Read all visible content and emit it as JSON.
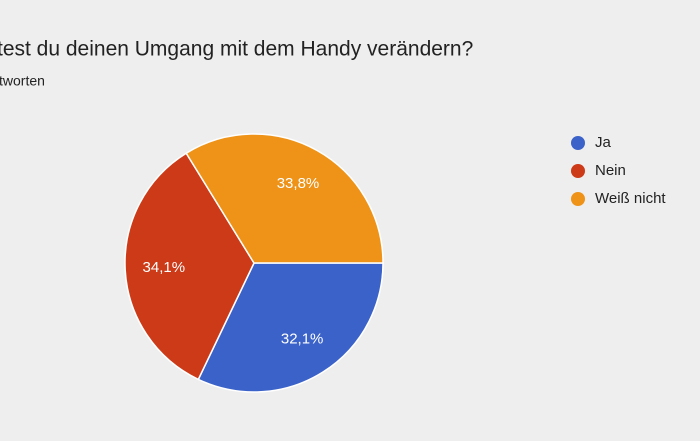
{
  "chart_data": {
    "type": "pie",
    "title": "test du deinen Umgang mit dem Handy verändern?",
    "subtitle": "tworten",
    "categories": [
      "Ja",
      "Nein",
      "Weiß nicht"
    ],
    "values": [
      32.1,
      34.1,
      33.8
    ],
    "value_labels": [
      "32,1%",
      "34,1%",
      "33,8%"
    ],
    "colors": [
      "#3b62c9",
      "#cc3a18",
      "#ee9318"
    ]
  }
}
